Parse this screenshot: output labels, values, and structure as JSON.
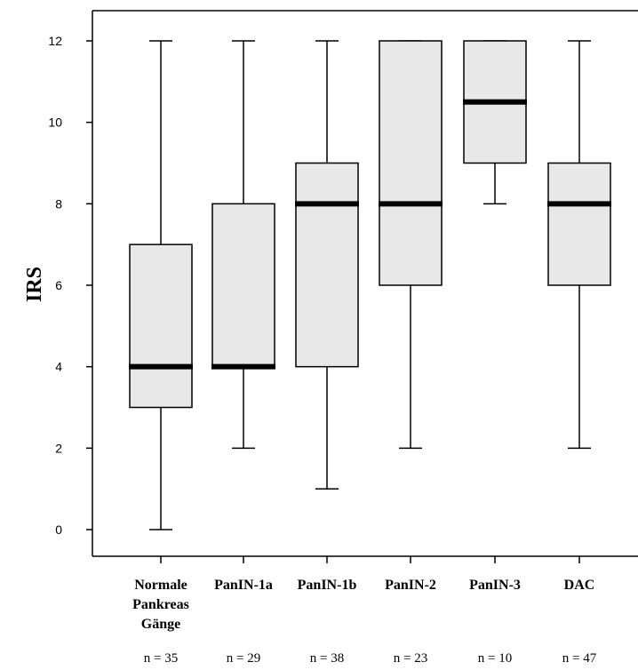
{
  "chart_data": {
    "type": "boxplot",
    "title": "",
    "xlabel": "",
    "ylabel": "IRS",
    "ylim": [
      -0.6,
      12.75
    ],
    "yticks": [
      0,
      2,
      4,
      6,
      8,
      10,
      12
    ],
    "grid": false,
    "box_color": "#e8e8e8",
    "categories": [
      {
        "label": [
          "Normale",
          "Pankreas",
          "Gänge"
        ],
        "n": "n = 35",
        "min": 0,
        "q1": 3,
        "median": 4,
        "q3": 7,
        "max": 12
      },
      {
        "label": [
          "PanIN-1a"
        ],
        "n": "n = 29",
        "min": 2,
        "q1": 4,
        "median": 4,
        "q3": 8,
        "max": 12
      },
      {
        "label": [
          "PanIN-1b"
        ],
        "n": "n = 38",
        "min": 1,
        "q1": 4,
        "median": 8,
        "q3": 9,
        "max": 12
      },
      {
        "label": [
          "PanIN-2"
        ],
        "n": "n = 23",
        "min": 2,
        "q1": 6,
        "median": 8,
        "q3": 12,
        "max": 12
      },
      {
        "label": [
          "PanIN-3"
        ],
        "n": "n = 10",
        "min": 8,
        "q1": 9,
        "median": 10.5,
        "q3": 12,
        "max": 12
      },
      {
        "label": [
          "DAC"
        ],
        "n": "n = 47",
        "min": 2,
        "q1": 6,
        "median": 8,
        "q3": 9,
        "max": 12
      }
    ]
  }
}
